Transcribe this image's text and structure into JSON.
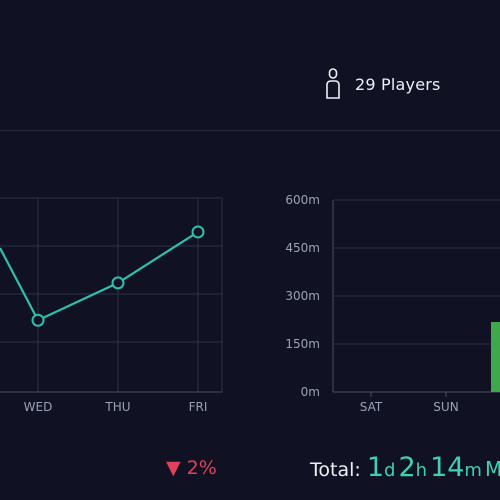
{
  "header": {
    "players_icon": "person-icon",
    "players_label": "29 Players"
  },
  "chart_data": [
    {
      "type": "line",
      "categories": [
        "WED",
        "THU",
        "FRI"
      ],
      "values": [
        148,
        225,
        330
      ],
      "color": "#2fbfaa"
    },
    {
      "type": "bar",
      "categories": [
        "SAT",
        "SUN"
      ],
      "values": [
        0,
        0
      ],
      "yticks": [
        "600m",
        "450m",
        "300m",
        "150m",
        "0m"
      ],
      "ylim": [
        0,
        600
      ],
      "partial_bar_color": "#3ea84a"
    }
  ],
  "footer": {
    "change_arrow": "▼",
    "change_value": "2%",
    "change_color": "#e0405a",
    "total_label": "Total:",
    "total_days": "1",
    "total_days_unit": "d",
    "total_hours": "2",
    "total_hours_unit": "h",
    "total_minutes": "14",
    "total_minutes_unit": "m",
    "total_tail": "M",
    "accent_color": "#3fd0b0"
  }
}
